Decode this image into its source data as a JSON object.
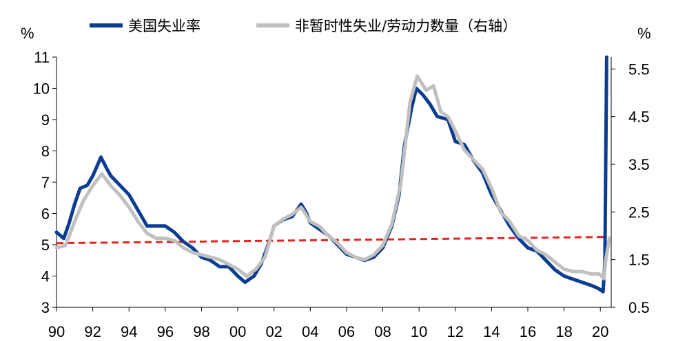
{
  "chart_data": {
    "type": "line",
    "legend": {
      "position": "top"
    },
    "left_axis": {
      "unit": "%",
      "ylim": [
        3,
        11
      ],
      "ticks": [
        3,
        4,
        5,
        6,
        7,
        8,
        9,
        10,
        11
      ]
    },
    "right_axis": {
      "unit": "%",
      "ylim": [
        0.5,
        5.75
      ],
      "ticks": [
        0.5,
        1.5,
        2.5,
        3.5,
        4.5,
        5.5
      ]
    },
    "x_axis": {
      "xlim": [
        1990,
        2020.6
      ],
      "tick_values": [
        1990,
        1992,
        1994,
        1996,
        1998,
        2000,
        2002,
        2004,
        2006,
        2008,
        2010,
        2012,
        2014,
        2016,
        2018,
        2020
      ],
      "tick_labels": [
        "90",
        "92",
        "94",
        "96",
        "98",
        "00",
        "02",
        "04",
        "06",
        "08",
        "10",
        "12",
        "14",
        "16",
        "18",
        "20"
      ]
    },
    "series": [
      {
        "name": "美国失业率",
        "axis": "left",
        "color": "#0a3d91",
        "points": [
          [
            1990,
            5.4
          ],
          [
            1990.4,
            5.2
          ],
          [
            1990.7,
            5.7
          ],
          [
            1991,
            6.3
          ],
          [
            1991.3,
            6.8
          ],
          [
            1991.7,
            6.9
          ],
          [
            1992,
            7.2
          ],
          [
            1992.45,
            7.8
          ],
          [
            1992.8,
            7.4
          ],
          [
            1993,
            7.2
          ],
          [
            1993.5,
            6.9
          ],
          [
            1994,
            6.6
          ],
          [
            1994.5,
            6.1
          ],
          [
            1995,
            5.6
          ],
          [
            1995.5,
            5.6
          ],
          [
            1996,
            5.6
          ],
          [
            1996.5,
            5.4
          ],
          [
            1997,
            5.1
          ],
          [
            1997.5,
            4.9
          ],
          [
            1998,
            4.6
          ],
          [
            1998.5,
            4.5
          ],
          [
            1999,
            4.3
          ],
          [
            1999.5,
            4.3
          ],
          [
            2000,
            4.0
          ],
          [
            2000.4,
            3.8
          ],
          [
            2000.9,
            4.0
          ],
          [
            2001.3,
            4.4
          ],
          [
            2001.8,
            5.2
          ],
          [
            2002,
            5.6
          ],
          [
            2002.5,
            5.8
          ],
          [
            2003,
            5.9
          ],
          [
            2003.5,
            6.3
          ],
          [
            2003.8,
            6.0
          ],
          [
            2004,
            5.7
          ],
          [
            2004.5,
            5.5
          ],
          [
            2005,
            5.3
          ],
          [
            2005.5,
            5.0
          ],
          [
            2006,
            4.7
          ],
          [
            2006.5,
            4.6
          ],
          [
            2007,
            4.5
          ],
          [
            2007.5,
            4.6
          ],
          [
            2008,
            4.9
          ],
          [
            2008.5,
            5.6
          ],
          [
            2008.9,
            6.6
          ],
          [
            2009.2,
            8.2
          ],
          [
            2009.6,
            9.4
          ],
          [
            2009.85,
            10.0
          ],
          [
            2010.2,
            9.8
          ],
          [
            2010.6,
            9.5
          ],
          [
            2011,
            9.1
          ],
          [
            2011.6,
            9.0
          ],
          [
            2012,
            8.3
          ],
          [
            2012.5,
            8.2
          ],
          [
            2013,
            7.7
          ],
          [
            2013.5,
            7.3
          ],
          [
            2014,
            6.6
          ],
          [
            2014.5,
            6.1
          ],
          [
            2015,
            5.6
          ],
          [
            2015.5,
            5.2
          ],
          [
            2016,
            4.9
          ],
          [
            2016.5,
            4.8
          ],
          [
            2017,
            4.5
          ],
          [
            2017.5,
            4.2
          ],
          [
            2018,
            4.0
          ],
          [
            2018.5,
            3.9
          ],
          [
            2019,
            3.8
          ],
          [
            2019.5,
            3.7
          ],
          [
            2019.9,
            3.6
          ],
          [
            2020.15,
            3.5
          ],
          [
            2020.25,
            4.4
          ],
          [
            2020.35,
            11.0
          ]
        ]
      },
      {
        "name": "非暂时性失业/劳动力数量（右轴）",
        "axis": "right",
        "color": "#c0c0c0",
        "points": [
          [
            1990,
            1.75
          ],
          [
            1990.5,
            1.8
          ],
          [
            1991,
            2.3
          ],
          [
            1991.5,
            2.75
          ],
          [
            1992,
            3.05
          ],
          [
            1992.5,
            3.3
          ],
          [
            1993,
            3.05
          ],
          [
            1993.5,
            2.85
          ],
          [
            1994,
            2.6
          ],
          [
            1994.5,
            2.3
          ],
          [
            1995,
            2.05
          ],
          [
            1995.5,
            1.95
          ],
          [
            1996,
            1.95
          ],
          [
            1996.5,
            1.9
          ],
          [
            1997,
            1.75
          ],
          [
            1997.5,
            1.65
          ],
          [
            1998,
            1.6
          ],
          [
            1998.5,
            1.55
          ],
          [
            1999,
            1.5
          ],
          [
            1999.5,
            1.4
          ],
          [
            2000,
            1.3
          ],
          [
            2000.5,
            1.15
          ],
          [
            2001,
            1.3
          ],
          [
            2001.5,
            1.55
          ],
          [
            2002,
            2.2
          ],
          [
            2002.5,
            2.35
          ],
          [
            2003,
            2.45
          ],
          [
            2003.5,
            2.6
          ],
          [
            2004,
            2.3
          ],
          [
            2004.5,
            2.2
          ],
          [
            2005,
            2.0
          ],
          [
            2005.5,
            1.85
          ],
          [
            2006,
            1.65
          ],
          [
            2006.5,
            1.55
          ],
          [
            2007,
            1.5
          ],
          [
            2007.5,
            1.6
          ],
          [
            2008,
            1.8
          ],
          [
            2008.5,
            2.25
          ],
          [
            2009,
            3.1
          ],
          [
            2009.5,
            4.8
          ],
          [
            2009.9,
            5.35
          ],
          [
            2010.4,
            5.05
          ],
          [
            2010.8,
            5.15
          ],
          [
            2011.2,
            4.6
          ],
          [
            2011.6,
            4.5
          ],
          [
            2012,
            4.2
          ],
          [
            2012.5,
            3.8
          ],
          [
            2013,
            3.6
          ],
          [
            2013.5,
            3.4
          ],
          [
            2014,
            3.0
          ],
          [
            2014.5,
            2.5
          ],
          [
            2015,
            2.3
          ],
          [
            2015.5,
            2.0
          ],
          [
            2016,
            1.9
          ],
          [
            2016.5,
            1.7
          ],
          [
            2017,
            1.6
          ],
          [
            2017.5,
            1.45
          ],
          [
            2018,
            1.3
          ],
          [
            2018.5,
            1.25
          ],
          [
            2019,
            1.25
          ],
          [
            2019.5,
            1.2
          ],
          [
            2019.95,
            1.2
          ],
          [
            2020.2,
            1.1
          ],
          [
            2020.3,
            1.5
          ],
          [
            2020.5,
            1.95
          ]
        ]
      }
    ],
    "reference_line": {
      "axis": "left",
      "points": [
        [
          1990,
          5.05
        ],
        [
          2020.3,
          5.25
        ]
      ],
      "color": "#e8221e",
      "style": "dashed"
    }
  }
}
